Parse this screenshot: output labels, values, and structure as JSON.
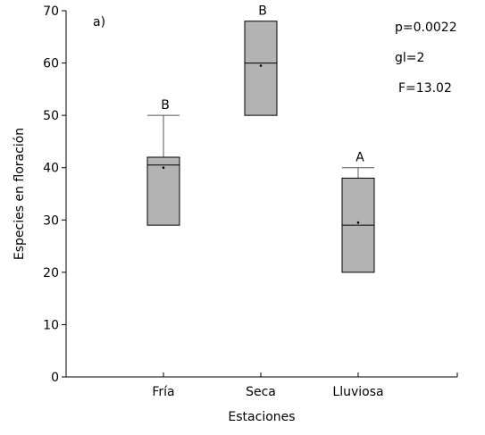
{
  "chart_data": {
    "type": "box",
    "panel_label": "a)",
    "xlabel": "Estaciones",
    "ylabel": "Especies en floración",
    "ylim": [
      0,
      70
    ],
    "yticks": [
      0,
      10,
      20,
      30,
      40,
      50,
      60,
      70
    ],
    "grid": false,
    "categories": [
      "Fría",
      "Seca",
      "Lluviosa"
    ],
    "boxes": [
      {
        "category": "Fría",
        "min": 29,
        "q1": 29,
        "median": 40.5,
        "q3": 42,
        "max": 50,
        "mean": 40,
        "group_letter": "B"
      },
      {
        "category": "Seca",
        "min": 50,
        "q1": 50,
        "median": 60,
        "q3": 68,
        "max": 68,
        "mean": 59.5,
        "group_letter": "B"
      },
      {
        "category": "Lluviosa",
        "min": 20,
        "q1": 20,
        "median": 29,
        "q3": 38,
        "max": 40,
        "mean": 29.5,
        "group_letter": "A"
      }
    ],
    "annotations": [
      "p=0.0022",
      "gl=2",
      "F=13.02"
    ],
    "colors": {
      "box_fill": "#b3b3b3",
      "stroke": "#000000",
      "whisker": "#555555"
    }
  }
}
